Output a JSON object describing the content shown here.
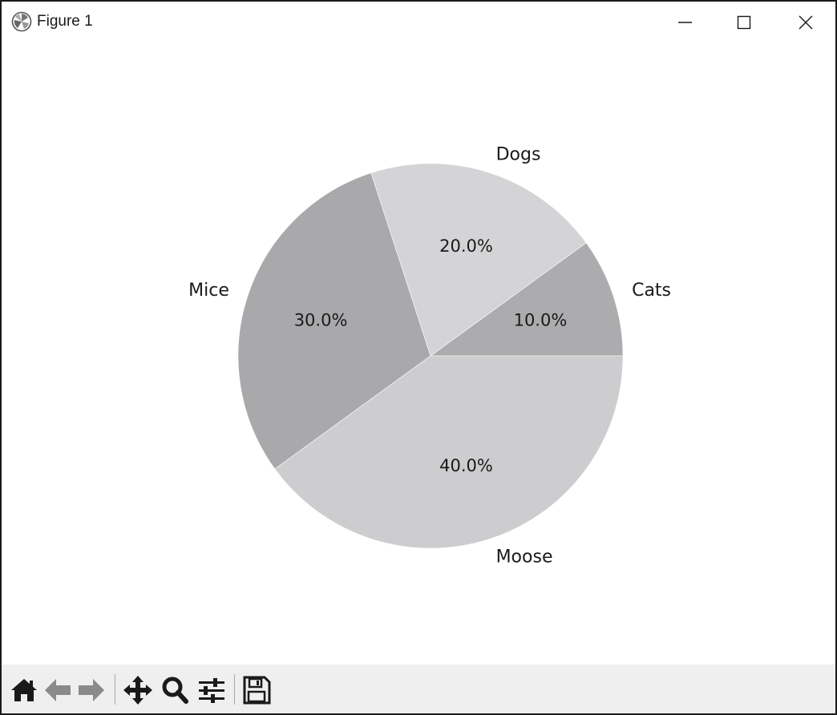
{
  "window": {
    "title": "Figure 1",
    "app_icon": "matplotlib-logo-icon",
    "controls": [
      "minimize-icon",
      "maximize-icon",
      "close-icon"
    ]
  },
  "toolbar": {
    "buttons": [
      {
        "name": "home-button",
        "icon": "home-icon"
      },
      {
        "name": "back-button",
        "icon": "arrow-left-icon"
      },
      {
        "name": "forward-button",
        "icon": "arrow-right-icon"
      },
      {
        "name": "pan-button",
        "icon": "move-icon"
      },
      {
        "name": "zoom-button",
        "icon": "magnifier-icon"
      },
      {
        "name": "configure-subplots-button",
        "icon": "sliders-icon"
      },
      {
        "name": "save-button",
        "icon": "floppy-disk-icon"
      }
    ]
  },
  "chart_data": {
    "type": "pie",
    "labels": [
      "Cats",
      "Dogs",
      "Mice",
      "Moose"
    ],
    "values": [
      10,
      20,
      30,
      40
    ],
    "autopct_labels": [
      "10.0%",
      "20.0%",
      "30.0%",
      "40.0%"
    ],
    "colors": [
      "#acacae",
      "#d4d4d6",
      "#a9a9ac",
      "#cdcdcf"
    ],
    "start_angle": 0,
    "direction": "counterclockwise",
    "title": "",
    "legend": false
  }
}
